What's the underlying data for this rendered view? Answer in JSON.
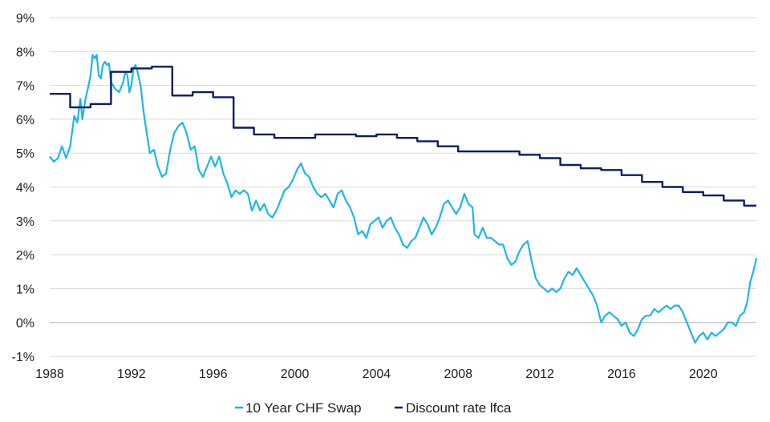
{
  "chart_data": {
    "type": "line",
    "title": "",
    "xlabel": "",
    "ylabel": "",
    "xlim": [
      1988,
      2022.6
    ],
    "ylim": [
      -1,
      9
    ],
    "grid": true,
    "legend_position": "bottom",
    "y_ticks": [
      {
        "value": -1,
        "label": "-1%"
      },
      {
        "value": 0,
        "label": "0%"
      },
      {
        "value": 1,
        "label": "1%"
      },
      {
        "value": 2,
        "label": "2%"
      },
      {
        "value": 3,
        "label": "3%"
      },
      {
        "value": 4,
        "label": "4%"
      },
      {
        "value": 5,
        "label": "5%"
      },
      {
        "value": 6,
        "label": "6%"
      },
      {
        "value": 7,
        "label": "7%"
      },
      {
        "value": 8,
        "label": "8%"
      },
      {
        "value": 9,
        "label": "9%"
      }
    ],
    "x_ticks": [
      {
        "value": 1988,
        "label": "1988"
      },
      {
        "value": 1992,
        "label": "1992"
      },
      {
        "value": 1996,
        "label": "1996"
      },
      {
        "value": 2000,
        "label": "2000"
      },
      {
        "value": 2004,
        "label": "2004"
      },
      {
        "value": 2008,
        "label": "2008"
      },
      {
        "value": 2012,
        "label": "2012"
      },
      {
        "value": 2016,
        "label": "2016"
      },
      {
        "value": 2020,
        "label": "2020"
      }
    ],
    "series": [
      {
        "name": "10 Year CHF Swap",
        "color": "#1fb6e6",
        "step": false,
        "points": [
          [
            1988.0,
            4.9
          ],
          [
            1988.2,
            4.75
          ],
          [
            1988.4,
            4.85
          ],
          [
            1988.6,
            5.2
          ],
          [
            1988.8,
            4.85
          ],
          [
            1989.0,
            5.2
          ],
          [
            1989.2,
            6.1
          ],
          [
            1989.35,
            5.9
          ],
          [
            1989.5,
            6.6
          ],
          [
            1989.6,
            6.0
          ],
          [
            1989.75,
            6.6
          ],
          [
            1989.9,
            7.0
          ],
          [
            1990.0,
            7.3
          ],
          [
            1990.1,
            7.9
          ],
          [
            1990.2,
            7.8
          ],
          [
            1990.3,
            7.9
          ],
          [
            1990.4,
            7.3
          ],
          [
            1990.5,
            7.2
          ],
          [
            1990.6,
            7.6
          ],
          [
            1990.7,
            7.7
          ],
          [
            1990.8,
            7.6
          ],
          [
            1990.9,
            7.65
          ],
          [
            1991.0,
            7.1
          ],
          [
            1991.2,
            6.9
          ],
          [
            1991.4,
            6.8
          ],
          [
            1991.6,
            7.1
          ],
          [
            1991.7,
            7.4
          ],
          [
            1991.8,
            7.3
          ],
          [
            1991.9,
            6.8
          ],
          [
            1992.0,
            7.0
          ],
          [
            1992.1,
            7.5
          ],
          [
            1992.2,
            7.6
          ],
          [
            1992.3,
            7.4
          ],
          [
            1992.45,
            7.0
          ],
          [
            1992.6,
            6.2
          ],
          [
            1992.75,
            5.6
          ],
          [
            1992.9,
            5.0
          ],
          [
            1993.1,
            5.1
          ],
          [
            1993.3,
            4.6
          ],
          [
            1993.5,
            4.3
          ],
          [
            1993.7,
            4.4
          ],
          [
            1993.9,
            5.1
          ],
          [
            1994.1,
            5.6
          ],
          [
            1994.3,
            5.8
          ],
          [
            1994.5,
            5.9
          ],
          [
            1994.7,
            5.6
          ],
          [
            1994.9,
            5.1
          ],
          [
            1995.1,
            5.2
          ],
          [
            1995.3,
            4.5
          ],
          [
            1995.5,
            4.3
          ],
          [
            1995.7,
            4.6
          ],
          [
            1995.9,
            4.9
          ],
          [
            1996.1,
            4.6
          ],
          [
            1996.3,
            4.9
          ],
          [
            1996.5,
            4.4
          ],
          [
            1996.7,
            4.1
          ],
          [
            1996.9,
            3.7
          ],
          [
            1997.1,
            3.9
          ],
          [
            1997.3,
            3.8
          ],
          [
            1997.5,
            3.9
          ],
          [
            1997.7,
            3.8
          ],
          [
            1997.9,
            3.3
          ],
          [
            1998.1,
            3.6
          ],
          [
            1998.3,
            3.3
          ],
          [
            1998.5,
            3.5
          ],
          [
            1998.7,
            3.2
          ],
          [
            1998.9,
            3.1
          ],
          [
            1999.1,
            3.3
          ],
          [
            1999.3,
            3.6
          ],
          [
            1999.5,
            3.9
          ],
          [
            1999.7,
            4.0
          ],
          [
            1999.9,
            4.2
          ],
          [
            2000.1,
            4.5
          ],
          [
            2000.3,
            4.7
          ],
          [
            2000.5,
            4.4
          ],
          [
            2000.7,
            4.3
          ],
          [
            2000.9,
            4.0
          ],
          [
            2001.1,
            3.8
          ],
          [
            2001.3,
            3.7
          ],
          [
            2001.5,
            3.8
          ],
          [
            2001.7,
            3.6
          ],
          [
            2001.9,
            3.4
          ],
          [
            2002.1,
            3.8
          ],
          [
            2002.3,
            3.9
          ],
          [
            2002.5,
            3.6
          ],
          [
            2002.7,
            3.4
          ],
          [
            2002.9,
            3.1
          ],
          [
            2003.1,
            2.6
          ],
          [
            2003.3,
            2.7
          ],
          [
            2003.5,
            2.5
          ],
          [
            2003.7,
            2.9
          ],
          [
            2003.9,
            3.0
          ],
          [
            2004.1,
            3.1
          ],
          [
            2004.3,
            2.8
          ],
          [
            2004.5,
            3.0
          ],
          [
            2004.7,
            3.1
          ],
          [
            2004.9,
            2.8
          ],
          [
            2005.1,
            2.6
          ],
          [
            2005.3,
            2.3
          ],
          [
            2005.5,
            2.2
          ],
          [
            2005.7,
            2.4
          ],
          [
            2005.9,
            2.5
          ],
          [
            2006.1,
            2.8
          ],
          [
            2006.3,
            3.1
          ],
          [
            2006.5,
            2.9
          ],
          [
            2006.7,
            2.6
          ],
          [
            2006.9,
            2.8
          ],
          [
            2007.1,
            3.1
          ],
          [
            2007.3,
            3.5
          ],
          [
            2007.5,
            3.6
          ],
          [
            2007.7,
            3.4
          ],
          [
            2007.9,
            3.2
          ],
          [
            2008.1,
            3.4
          ],
          [
            2008.3,
            3.8
          ],
          [
            2008.5,
            3.5
          ],
          [
            2008.7,
            3.4
          ],
          [
            2008.8,
            2.6
          ],
          [
            2009.0,
            2.5
          ],
          [
            2009.2,
            2.8
          ],
          [
            2009.4,
            2.5
          ],
          [
            2009.6,
            2.5
          ],
          [
            2009.8,
            2.4
          ],
          [
            2010.0,
            2.3
          ],
          [
            2010.2,
            2.3
          ],
          [
            2010.4,
            1.9
          ],
          [
            2010.6,
            1.7
          ],
          [
            2010.8,
            1.8
          ],
          [
            2011.0,
            2.1
          ],
          [
            2011.2,
            2.3
          ],
          [
            2011.4,
            2.4
          ],
          [
            2011.6,
            1.8
          ],
          [
            2011.8,
            1.3
          ],
          [
            2012.0,
            1.1
          ],
          [
            2012.2,
            1.0
          ],
          [
            2012.4,
            0.9
          ],
          [
            2012.6,
            1.0
          ],
          [
            2012.8,
            0.9
          ],
          [
            2013.0,
            1.0
          ],
          [
            2013.2,
            1.3
          ],
          [
            2013.4,
            1.5
          ],
          [
            2013.6,
            1.4
          ],
          [
            2013.8,
            1.6
          ],
          [
            2014.0,
            1.4
          ],
          [
            2014.2,
            1.2
          ],
          [
            2014.4,
            1.0
          ],
          [
            2014.6,
            0.8
          ],
          [
            2014.8,
            0.5
          ],
          [
            2015.0,
            0.0
          ],
          [
            2015.2,
            0.2
          ],
          [
            2015.4,
            0.3
          ],
          [
            2015.6,
            0.2
          ],
          [
            2015.8,
            0.1
          ],
          [
            2016.0,
            -0.1
          ],
          [
            2016.2,
            0.0
          ],
          [
            2016.4,
            -0.3
          ],
          [
            2016.6,
            -0.4
          ],
          [
            2016.8,
            -0.2
          ],
          [
            2017.0,
            0.1
          ],
          [
            2017.2,
            0.2
          ],
          [
            2017.4,
            0.2
          ],
          [
            2017.6,
            0.4
          ],
          [
            2017.8,
            0.3
          ],
          [
            2018.0,
            0.4
          ],
          [
            2018.2,
            0.5
          ],
          [
            2018.4,
            0.4
          ],
          [
            2018.6,
            0.5
          ],
          [
            2018.8,
            0.5
          ],
          [
            2019.0,
            0.3
          ],
          [
            2019.2,
            0.0
          ],
          [
            2019.4,
            -0.3
          ],
          [
            2019.6,
            -0.6
          ],
          [
            2019.8,
            -0.4
          ],
          [
            2020.0,
            -0.3
          ],
          [
            2020.2,
            -0.5
          ],
          [
            2020.4,
            -0.3
          ],
          [
            2020.6,
            -0.4
          ],
          [
            2020.8,
            -0.3
          ],
          [
            2021.0,
            -0.2
          ],
          [
            2021.2,
            0.0
          ],
          [
            2021.4,
            0.0
          ],
          [
            2021.6,
            -0.1
          ],
          [
            2021.8,
            0.2
          ],
          [
            2022.0,
            0.3
          ],
          [
            2022.15,
            0.6
          ],
          [
            2022.3,
            1.2
          ],
          [
            2022.45,
            1.5
          ],
          [
            2022.6,
            1.9
          ]
        ]
      },
      {
        "name": "Discount rate lfca",
        "color": "#0d1b6b",
        "step": true,
        "points": [
          [
            1988.0,
            6.75
          ],
          [
            1989.0,
            6.35
          ],
          [
            1990.0,
            6.45
          ],
          [
            1991.0,
            7.4
          ],
          [
            1992.0,
            7.5
          ],
          [
            1993.0,
            7.55
          ],
          [
            1994.0,
            6.7
          ],
          [
            1995.0,
            6.8
          ],
          [
            1996.0,
            6.65
          ],
          [
            1997.0,
            5.75
          ],
          [
            1998.0,
            5.55
          ],
          [
            1999.0,
            5.45
          ],
          [
            2000.0,
            5.45
          ],
          [
            2001.0,
            5.55
          ],
          [
            2002.0,
            5.55
          ],
          [
            2003.0,
            5.5
          ],
          [
            2004.0,
            5.55
          ],
          [
            2005.0,
            5.45
          ],
          [
            2006.0,
            5.35
          ],
          [
            2007.0,
            5.2
          ],
          [
            2008.0,
            5.05
          ],
          [
            2009.0,
            5.05
          ],
          [
            2010.0,
            5.05
          ],
          [
            2011.0,
            4.95
          ],
          [
            2012.0,
            4.85
          ],
          [
            2013.0,
            4.65
          ],
          [
            2014.0,
            4.55
          ],
          [
            2015.0,
            4.5
          ],
          [
            2016.0,
            4.35
          ],
          [
            2017.0,
            4.15
          ],
          [
            2018.0,
            4.0
          ],
          [
            2019.0,
            3.85
          ],
          [
            2020.0,
            3.75
          ],
          [
            2021.0,
            3.6
          ],
          [
            2022.0,
            3.45
          ],
          [
            2022.6,
            3.45
          ]
        ]
      }
    ]
  },
  "legend": {
    "items": [
      {
        "label": "10 Year CHF Swap",
        "color": "#1fb6e6"
      },
      {
        "label": "Discount rate lfca",
        "color": "#0d1b6b"
      }
    ]
  }
}
